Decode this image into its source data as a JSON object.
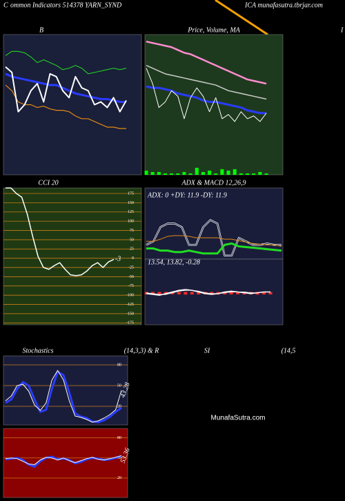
{
  "header": {
    "left": "C",
    "center": "ommon  Indicators 514378  YARN_SYND",
    "right": "ICA munafasutra.tbrjar.com",
    "edge": "I"
  },
  "watermark": "MunafaSutra.com",
  "chart_data": [
    {
      "type": "line",
      "title": "B",
      "background": "#1a1f3a",
      "ylim": [
        0,
        100
      ],
      "series": [
        {
          "color": "#22c322",
          "width": 1.2,
          "values": [
            85,
            88,
            88,
            87,
            84,
            80,
            82,
            80,
            78,
            75,
            76,
            78,
            76,
            72,
            73,
            74,
            75,
            76,
            75,
            76
          ]
        },
        {
          "color": "#2a3cff",
          "width": 3,
          "values": [
            72,
            70,
            69,
            68,
            67,
            66,
            65,
            64,
            64,
            62,
            60,
            58,
            57,
            56,
            55,
            54,
            54,
            53,
            52,
            52
          ]
        },
        {
          "color": "#e38a12",
          "width": 1.2,
          "values": [
            64,
            60,
            52,
            50,
            50,
            48,
            49,
            47,
            46,
            46,
            45,
            42,
            40,
            40,
            38,
            36,
            34,
            34,
            33,
            33
          ]
        },
        {
          "color": "#ffffff",
          "width": 2,
          "values": [
            77,
            73,
            45,
            50,
            60,
            65,
            52,
            72,
            70,
            60,
            55,
            70,
            62,
            60,
            50,
            52,
            48,
            55,
            45,
            53
          ]
        }
      ]
    },
    {
      "type": "line",
      "title": "Price, Volume, MA",
      "background": "#1e3a1e",
      "ylim": [
        0,
        100
      ],
      "series": [
        {
          "color": "#ff8ccf",
          "width": 2.5,
          "values": [
            95,
            94,
            93,
            92,
            91,
            89,
            87,
            86,
            84,
            82,
            80,
            78,
            76,
            74,
            72,
            70,
            68,
            67,
            66,
            65
          ]
        },
        {
          "color": "#cccccc",
          "width": 1.5,
          "values": [
            78,
            76,
            74,
            72,
            71,
            70,
            69,
            68,
            67,
            66,
            65,
            64,
            62,
            60,
            59,
            58,
            57,
            56,
            55,
            54
          ]
        },
        {
          "color": "#2a3cff",
          "width": 3,
          "values": [
            63,
            62,
            62,
            61,
            60,
            58,
            57,
            56,
            55,
            53,
            52,
            52,
            51,
            50,
            49,
            48,
            46,
            45,
            44,
            44
          ]
        },
        {
          "color": "#ffffff",
          "width": 1,
          "values": [
            76,
            65,
            48,
            52,
            60,
            56,
            40,
            55,
            62,
            56,
            45,
            55,
            40,
            43,
            38,
            45,
            40,
            42,
            38,
            44
          ]
        },
        {
          "color": "#00ff00",
          "style": "bar",
          "values": [
            3,
            2,
            2,
            1,
            1,
            1,
            2,
            1,
            5,
            2,
            3,
            1,
            4,
            3,
            4,
            1,
            1,
            1,
            2,
            1
          ]
        }
      ]
    },
    {
      "type": "line",
      "title": "CCI 20",
      "background": "#1f3a12",
      "grid_color": "#c87a1a",
      "ylim": [
        -180,
        190
      ],
      "yticks": [
        175,
        150,
        125,
        100,
        75,
        50,
        25,
        0,
        -25,
        -50,
        -75,
        -100,
        -125,
        -150,
        -175
      ],
      "end_label": 0,
      "series": [
        {
          "color": "#ffffff",
          "width": 1.5,
          "values": [
            190,
            190,
            175,
            165,
            120,
            60,
            5,
            -25,
            -30,
            -20,
            -12,
            -30,
            -45,
            -47,
            -45,
            -35,
            -20,
            -12,
            -25,
            -10,
            -3
          ]
        }
      ]
    },
    {
      "type": "line",
      "title": "ADX  & MACD 12,26,9",
      "annotation": "ADX: 0  +DY: 11.9 -DY: 11.9",
      "background": "#1a1d3a",
      "ylim": [
        0,
        100
      ],
      "series": [
        {
          "color": "#ffffff",
          "width": 2.5,
          "values": [
            20,
            25,
            45,
            50,
            50,
            45,
            20,
            20,
            45,
            55,
            50,
            5,
            5,
            30,
            25,
            20,
            20,
            22,
            20,
            20
          ]
        },
        {
          "color": "#1a1d3a",
          "width": 1,
          "values": [
            20,
            25,
            45,
            50,
            50,
            45,
            20,
            20,
            45,
            55,
            50,
            5,
            5,
            30,
            25,
            20,
            20,
            22,
            20,
            20
          ]
        },
        {
          "color": "#e38a12",
          "width": 1,
          "values": [
            25,
            25,
            28,
            32,
            33,
            33,
            32,
            30,
            30,
            30,
            30,
            28,
            28,
            26,
            24,
            22,
            21,
            20,
            20,
            18
          ]
        },
        {
          "color": "#22dd22",
          "width": 3,
          "values": [
            15,
            15,
            12,
            12,
            10,
            10,
            12,
            10,
            8,
            8,
            8,
            20,
            22,
            18,
            17,
            16,
            15,
            14,
            13,
            12
          ]
        }
      ]
    },
    {
      "type": "line",
      "annotation": "13.54,  13.82,  -0.28",
      "background": "#1a1d3a",
      "ylim": [
        -20,
        20
      ],
      "series": [
        {
          "color": "#ff2a2a",
          "style": "bar",
          "values": [
            -1.5,
            -1.5,
            -1.6,
            -1.5,
            -1.4,
            -1.5,
            -1.6,
            -1.5,
            -1.5,
            -1.4,
            -1.5,
            -1.6,
            -1.5,
            -1.5,
            -1.4,
            -1.5,
            -1.5,
            -1.6,
            -1.5,
            -1.5
          ]
        },
        {
          "color": "#ffffff",
          "width": 1.5,
          "values": [
            -1,
            -1.5,
            -2,
            -1,
            0,
            1,
            1.5,
            1,
            0,
            -1,
            -1.5,
            -1,
            0,
            0.5,
            0,
            -0.5,
            -1,
            -0.5,
            0,
            0
          ]
        },
        {
          "color": "#ffffff",
          "width": 1,
          "values": [
            -0.5,
            -1,
            -1.5,
            -1.5,
            -0.5,
            0.5,
            1,
            1,
            0.5,
            -0.5,
            -1,
            -1,
            -0.5,
            0,
            0,
            0,
            -0.5,
            -0.5,
            0,
            0
          ]
        }
      ]
    },
    {
      "type": "line",
      "title_parts": [
        "Stochastics",
        "(14,3,3) & R",
        "SI",
        "(14,5"
      ],
      "background": "#1a1d3a",
      "grid_color": "#c87a1a",
      "ylim": [
        -7,
        93
      ],
      "yticks": [
        80,
        50,
        20
      ],
      "end_label": 1,
      "series": [
        {
          "color": "#2a3cff",
          "width": 3,
          "values": [
            25,
            30,
            45,
            55,
            50,
            30,
            12,
            15,
            45,
            70,
            65,
            40,
            10,
            5,
            3,
            -2,
            -3,
            0,
            5,
            12,
            18
          ]
        },
        {
          "color": "#ffffff",
          "width": 1,
          "values": [
            28,
            35,
            50,
            52,
            42,
            22,
            14,
            25,
            58,
            72,
            58,
            28,
            6,
            4,
            1,
            -3,
            -1,
            3,
            8,
            15,
            43.28
          ]
        }
      ]
    },
    {
      "type": "line",
      "background": "#8b0000",
      "grid_color": "#c87a1a",
      "ylim": [
        -9,
        94
      ],
      "yticks": [
        80,
        50,
        20
      ],
      "end_label": 1,
      "series": [
        {
          "color": "#2a3cff",
          "width": 3,
          "values": [
            48,
            49,
            50,
            47,
            40,
            37,
            45,
            50,
            52,
            48,
            49,
            47,
            42,
            44,
            48,
            50,
            49,
            47,
            48,
            50,
            53
          ]
        },
        {
          "color": "#ffffff",
          "width": 1,
          "values": [
            49,
            50,
            49,
            45,
            41,
            40,
            47,
            51,
            50,
            47,
            50,
            46,
            43,
            46,
            49,
            51,
            48,
            47,
            49,
            51,
            53.36
          ]
        }
      ]
    }
  ]
}
